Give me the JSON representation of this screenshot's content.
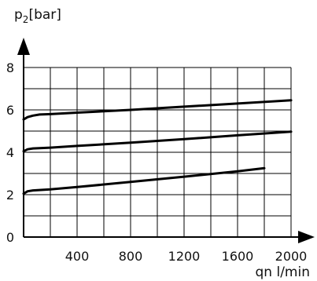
{
  "chart_data": {
    "type": "line",
    "title": "",
    "ylabel": {
      "main": "p",
      "sub": "2",
      "unit": "[bar]"
    },
    "xlabel": "qn l/min",
    "xlim": [
      0,
      2000
    ],
    "ylim": [
      0,
      8
    ],
    "grid": true,
    "x_tick_labels": [
      "400",
      "800",
      "1200",
      "1600",
      "2000"
    ],
    "y_tick_labels": [
      "0",
      "2",
      "4",
      "6",
      "8"
    ],
    "series": [
      {
        "values": [
          {
            "x": 0,
            "y": 5.55
          },
          {
            "x": 30,
            "y": 5.66
          },
          {
            "x": 70,
            "y": 5.73
          },
          {
            "x": 120,
            "y": 5.78
          },
          {
            "x": 200,
            "y": 5.8
          },
          {
            "x": 400,
            "y": 5.87
          },
          {
            "x": 800,
            "y": 6.0
          },
          {
            "x": 1200,
            "y": 6.15
          },
          {
            "x": 1600,
            "y": 6.3
          },
          {
            "x": 2000,
            "y": 6.45
          }
        ]
      },
      {
        "values": [
          {
            "x": 0,
            "y": 4.05
          },
          {
            "x": 30,
            "y": 4.14
          },
          {
            "x": 70,
            "y": 4.18
          },
          {
            "x": 200,
            "y": 4.22
          },
          {
            "x": 400,
            "y": 4.3
          },
          {
            "x": 800,
            "y": 4.45
          },
          {
            "x": 1200,
            "y": 4.62
          },
          {
            "x": 1600,
            "y": 4.8
          },
          {
            "x": 2000,
            "y": 4.97
          }
        ]
      },
      {
        "values": [
          {
            "x": 0,
            "y": 2.05
          },
          {
            "x": 30,
            "y": 2.16
          },
          {
            "x": 70,
            "y": 2.2
          },
          {
            "x": 200,
            "y": 2.25
          },
          {
            "x": 400,
            "y": 2.36
          },
          {
            "x": 800,
            "y": 2.6
          },
          {
            "x": 1200,
            "y": 2.85
          },
          {
            "x": 1600,
            "y": 3.1
          },
          {
            "x": 1800,
            "y": 3.25
          }
        ]
      }
    ]
  }
}
